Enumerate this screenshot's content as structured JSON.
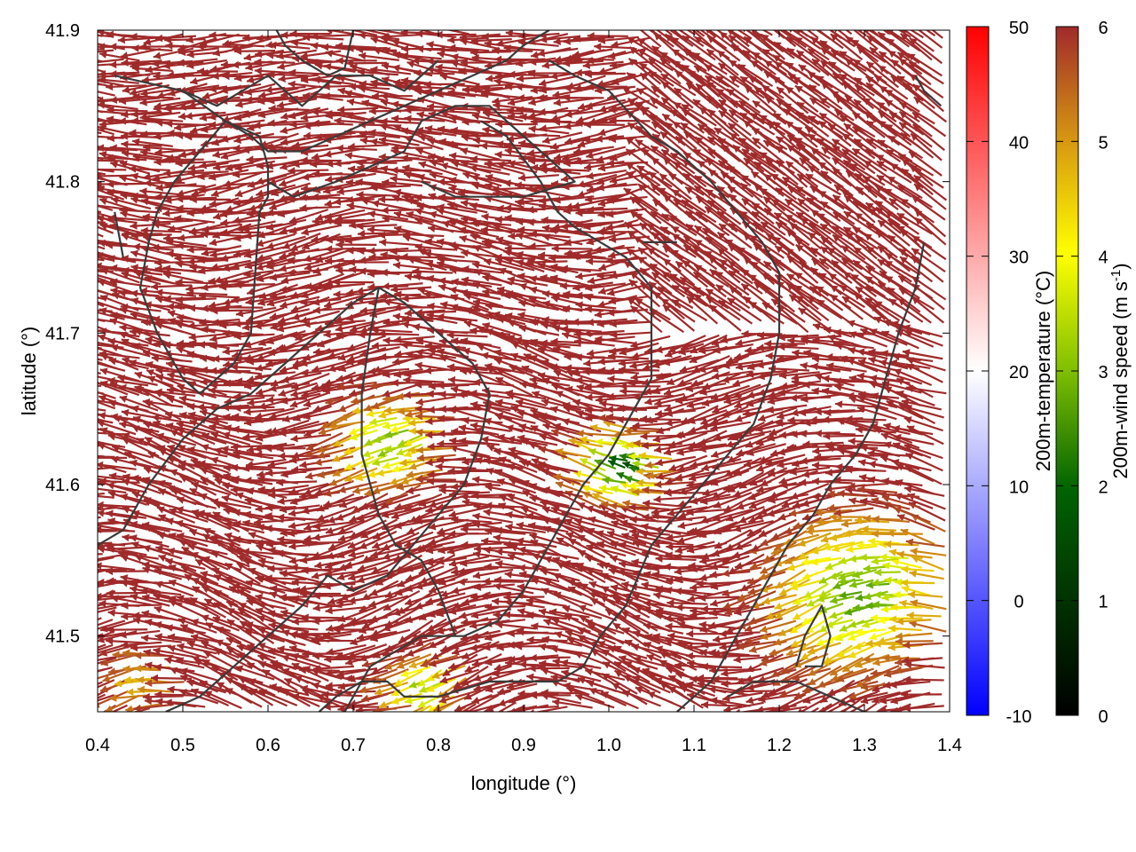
{
  "chart_data": {
    "type": "vector-field",
    "xlabel": "longitude (°)",
    "ylabel": "latitude (°)",
    "xlim": [
      0.4,
      1.4
    ],
    "ylim": [
      41.45,
      41.9
    ],
    "xticks": [
      "0.4",
      "0.5",
      "0.6",
      "0.7",
      "0.8",
      "0.9",
      "1.0",
      "1.1",
      "1.2",
      "1.3",
      "1.4"
    ],
    "yticks": [
      "41.5",
      "41.6",
      "41.7",
      "41.8",
      "41.9"
    ],
    "colorbars": [
      {
        "label": "200m-temperature (°C)",
        "range": [
          -10,
          50
        ],
        "ticks": [
          "-10",
          "0",
          "10",
          "20",
          "30",
          "40",
          "50"
        ],
        "colors": [
          "#0000ff",
          "#ffffff",
          "#ff0000"
        ]
      },
      {
        "label_main": "200m-wind speed (m s",
        "label_sup": "-1",
        "label_end": ")",
        "range": [
          0,
          6
        ],
        "ticks": [
          "0",
          "1",
          "2",
          "3",
          "4",
          "5",
          "6"
        ],
        "colors": [
          "#000000",
          "#006400",
          "#7fbf00",
          "#ffff00",
          "#d89a10",
          "#a02a2a"
        ]
      }
    ],
    "contours": [
      [
        [
          0.42,
          41.87
        ],
        [
          0.5,
          41.86
        ],
        [
          0.54,
          41.85
        ],
        [
          0.57,
          41.86
        ],
        [
          0.6,
          41.87
        ],
        [
          0.62,
          41.86
        ],
        [
          0.64,
          41.85
        ],
        [
          0.66,
          41.86
        ],
        [
          0.68,
          41.87
        ],
        [
          0.72,
          41.87
        ],
        [
          0.76,
          41.86
        ],
        [
          0.8,
          41.88
        ]
      ],
      [
        [
          0.5,
          41.86
        ],
        [
          0.55,
          41.84
        ],
        [
          0.58,
          41.83
        ],
        [
          0.6,
          41.82
        ],
        [
          0.64,
          41.82
        ],
        [
          0.68,
          41.83
        ],
        [
          0.72,
          41.84
        ],
        [
          0.76,
          41.85
        ],
        [
          0.8,
          41.86
        ],
        [
          0.84,
          41.87
        ],
        [
          0.88,
          41.88
        ],
        [
          0.9,
          41.89
        ],
        [
          0.93,
          41.9
        ]
      ],
      [
        [
          0.61,
          41.9
        ],
        [
          0.62,
          41.89
        ],
        [
          0.64,
          41.88
        ],
        [
          0.67,
          41.87
        ],
        [
          0.69,
          41.875
        ],
        [
          0.7,
          41.9
        ]
      ],
      [
        [
          0.55,
          41.84
        ],
        [
          0.59,
          41.83
        ],
        [
          0.6,
          41.81
        ],
        [
          0.6,
          41.79
        ],
        [
          0.59,
          41.78
        ],
        [
          0.58,
          41.7
        ],
        [
          0.56,
          41.68
        ],
        [
          0.52,
          41.66
        ],
        [
          0.5,
          41.67
        ],
        [
          0.47,
          41.7
        ],
        [
          0.45,
          41.73
        ],
        [
          0.46,
          41.76
        ],
        [
          0.47,
          41.78
        ],
        [
          0.49,
          41.8
        ],
        [
          0.52,
          41.82
        ],
        [
          0.55,
          41.84
        ]
      ],
      [
        [
          0.42,
          41.78
        ],
        [
          0.43,
          41.75
        ]
      ],
      [
        [
          0.6,
          41.8
        ],
        [
          0.63,
          41.79
        ],
        [
          0.68,
          41.8
        ],
        [
          0.72,
          41.81
        ],
        [
          0.76,
          41.82
        ],
        [
          0.78,
          41.84
        ],
        [
          0.82,
          41.85
        ],
        [
          0.86,
          41.85
        ],
        [
          0.9,
          41.83
        ],
        [
          0.94,
          41.81
        ],
        [
          0.96,
          41.8
        ],
        [
          0.9,
          41.79
        ],
        [
          0.86,
          41.79
        ],
        [
          0.82,
          41.79
        ],
        [
          0.78,
          41.8
        ]
      ],
      [
        [
          0.85,
          41.84
        ],
        [
          0.88,
          41.83
        ],
        [
          0.92,
          41.8
        ],
        [
          0.94,
          41.78
        ],
        [
          0.96,
          41.77
        ],
        [
          0.99,
          41.76
        ],
        [
          1.02,
          41.75
        ],
        [
          1.05,
          41.73
        ],
        [
          1.05,
          41.7
        ],
        [
          1.05,
          41.67
        ],
        [
          1.02,
          41.64
        ],
        [
          1.0,
          41.62
        ],
        [
          0.97,
          41.6
        ],
        [
          0.94,
          41.57
        ],
        [
          0.92,
          41.55
        ],
        [
          0.9,
          41.53
        ],
        [
          0.87,
          41.51
        ],
        [
          0.83,
          41.5
        ],
        [
          0.78,
          41.5
        ],
        [
          0.75,
          41.49
        ],
        [
          0.72,
          41.48
        ],
        [
          0.7,
          41.46
        ],
        [
          0.69,
          41.45
        ]
      ],
      [
        [
          0.93,
          41.88
        ],
        [
          0.96,
          41.87
        ],
        [
          1.0,
          41.86
        ],
        [
          1.05,
          41.83
        ],
        [
          1.08,
          41.82
        ],
        [
          1.12,
          41.8
        ],
        [
          1.15,
          41.78
        ],
        [
          1.18,
          41.76
        ],
        [
          1.2,
          41.74
        ],
        [
          1.2,
          41.7
        ],
        [
          1.19,
          41.67
        ],
        [
          1.17,
          41.64
        ],
        [
          1.14,
          41.62
        ],
        [
          1.11,
          41.6
        ],
        [
          1.08,
          41.58
        ],
        [
          1.05,
          41.56
        ],
        [
          1.02,
          41.52
        ],
        [
          0.99,
          41.5
        ],
        [
          0.97,
          41.48
        ],
        [
          0.94,
          41.47
        ],
        [
          0.9,
          41.47
        ],
        [
          0.86,
          41.47
        ],
        [
          0.8,
          41.46
        ],
        [
          0.76,
          41.46
        ],
        [
          0.74,
          41.47
        ],
        [
          0.71,
          41.47
        ],
        [
          0.68,
          41.46
        ],
        [
          0.66,
          41.45
        ]
      ],
      [
        [
          0.4,
          41.56
        ],
        [
          0.43,
          41.57
        ],
        [
          0.46,
          41.6
        ],
        [
          0.5,
          41.63
        ],
        [
          0.54,
          41.65
        ],
        [
          0.58,
          41.66
        ],
        [
          0.62,
          41.68
        ],
        [
          0.66,
          41.7
        ],
        [
          0.7,
          41.72
        ],
        [
          0.73,
          41.73
        ],
        [
          0.76,
          41.72
        ],
        [
          0.8,
          41.7
        ],
        [
          0.84,
          41.68
        ],
        [
          0.86,
          41.66
        ],
        [
          0.85,
          41.63
        ],
        [
          0.83,
          41.6
        ],
        [
          0.8,
          41.58
        ],
        [
          0.77,
          41.56
        ],
        [
          0.74,
          41.54
        ],
        [
          0.7,
          41.53
        ],
        [
          0.67,
          41.54
        ],
        [
          0.64,
          41.52
        ],
        [
          0.6,
          41.5
        ],
        [
          0.56,
          41.48
        ],
        [
          0.52,
          41.46
        ],
        [
          0.48,
          41.45
        ]
      ],
      [
        [
          0.73,
          41.73
        ],
        [
          0.72,
          41.7
        ],
        [
          0.71,
          41.66
        ],
        [
          0.71,
          41.62
        ],
        [
          0.72,
          41.6
        ],
        [
          0.73,
          41.58
        ],
        [
          0.75,
          41.56
        ],
        [
          0.78,
          41.55
        ],
        [
          0.8,
          41.53
        ],
        [
          0.82,
          41.5
        ]
      ],
      [
        [
          1.36,
          41.87
        ],
        [
          1.37,
          41.86
        ],
        [
          1.39,
          41.85
        ]
      ],
      [
        [
          1.37,
          41.76
        ],
        [
          1.36,
          41.73
        ],
        [
          1.34,
          41.7
        ],
        [
          1.33,
          41.68
        ],
        [
          1.32,
          41.66
        ],
        [
          1.31,
          41.64
        ],
        [
          1.29,
          41.62
        ],
        [
          1.26,
          41.6
        ],
        [
          1.24,
          41.58
        ],
        [
          1.21,
          41.56
        ],
        [
          1.18,
          41.53
        ],
        [
          1.16,
          41.51
        ],
        [
          1.14,
          41.49
        ],
        [
          1.12,
          41.47
        ],
        [
          1.1,
          41.46
        ],
        [
          1.08,
          41.45
        ]
      ],
      [
        [
          1.23,
          41.48
        ],
        [
          1.25,
          41.48
        ],
        [
          1.26,
          41.5
        ],
        [
          1.25,
          41.52
        ],
        [
          1.23,
          41.5
        ],
        [
          1.22,
          41.48
        ]
      ],
      [
        [
          1.14,
          41.46
        ],
        [
          1.17,
          41.47
        ],
        [
          1.22,
          41.47
        ],
        [
          1.26,
          41.46
        ],
        [
          1.3,
          41.45
        ]
      ],
      [
        [
          1.04,
          41.76
        ],
        [
          1.06,
          41.76
        ],
        [
          1.08,
          41.76
        ]
      ]
    ]
  }
}
